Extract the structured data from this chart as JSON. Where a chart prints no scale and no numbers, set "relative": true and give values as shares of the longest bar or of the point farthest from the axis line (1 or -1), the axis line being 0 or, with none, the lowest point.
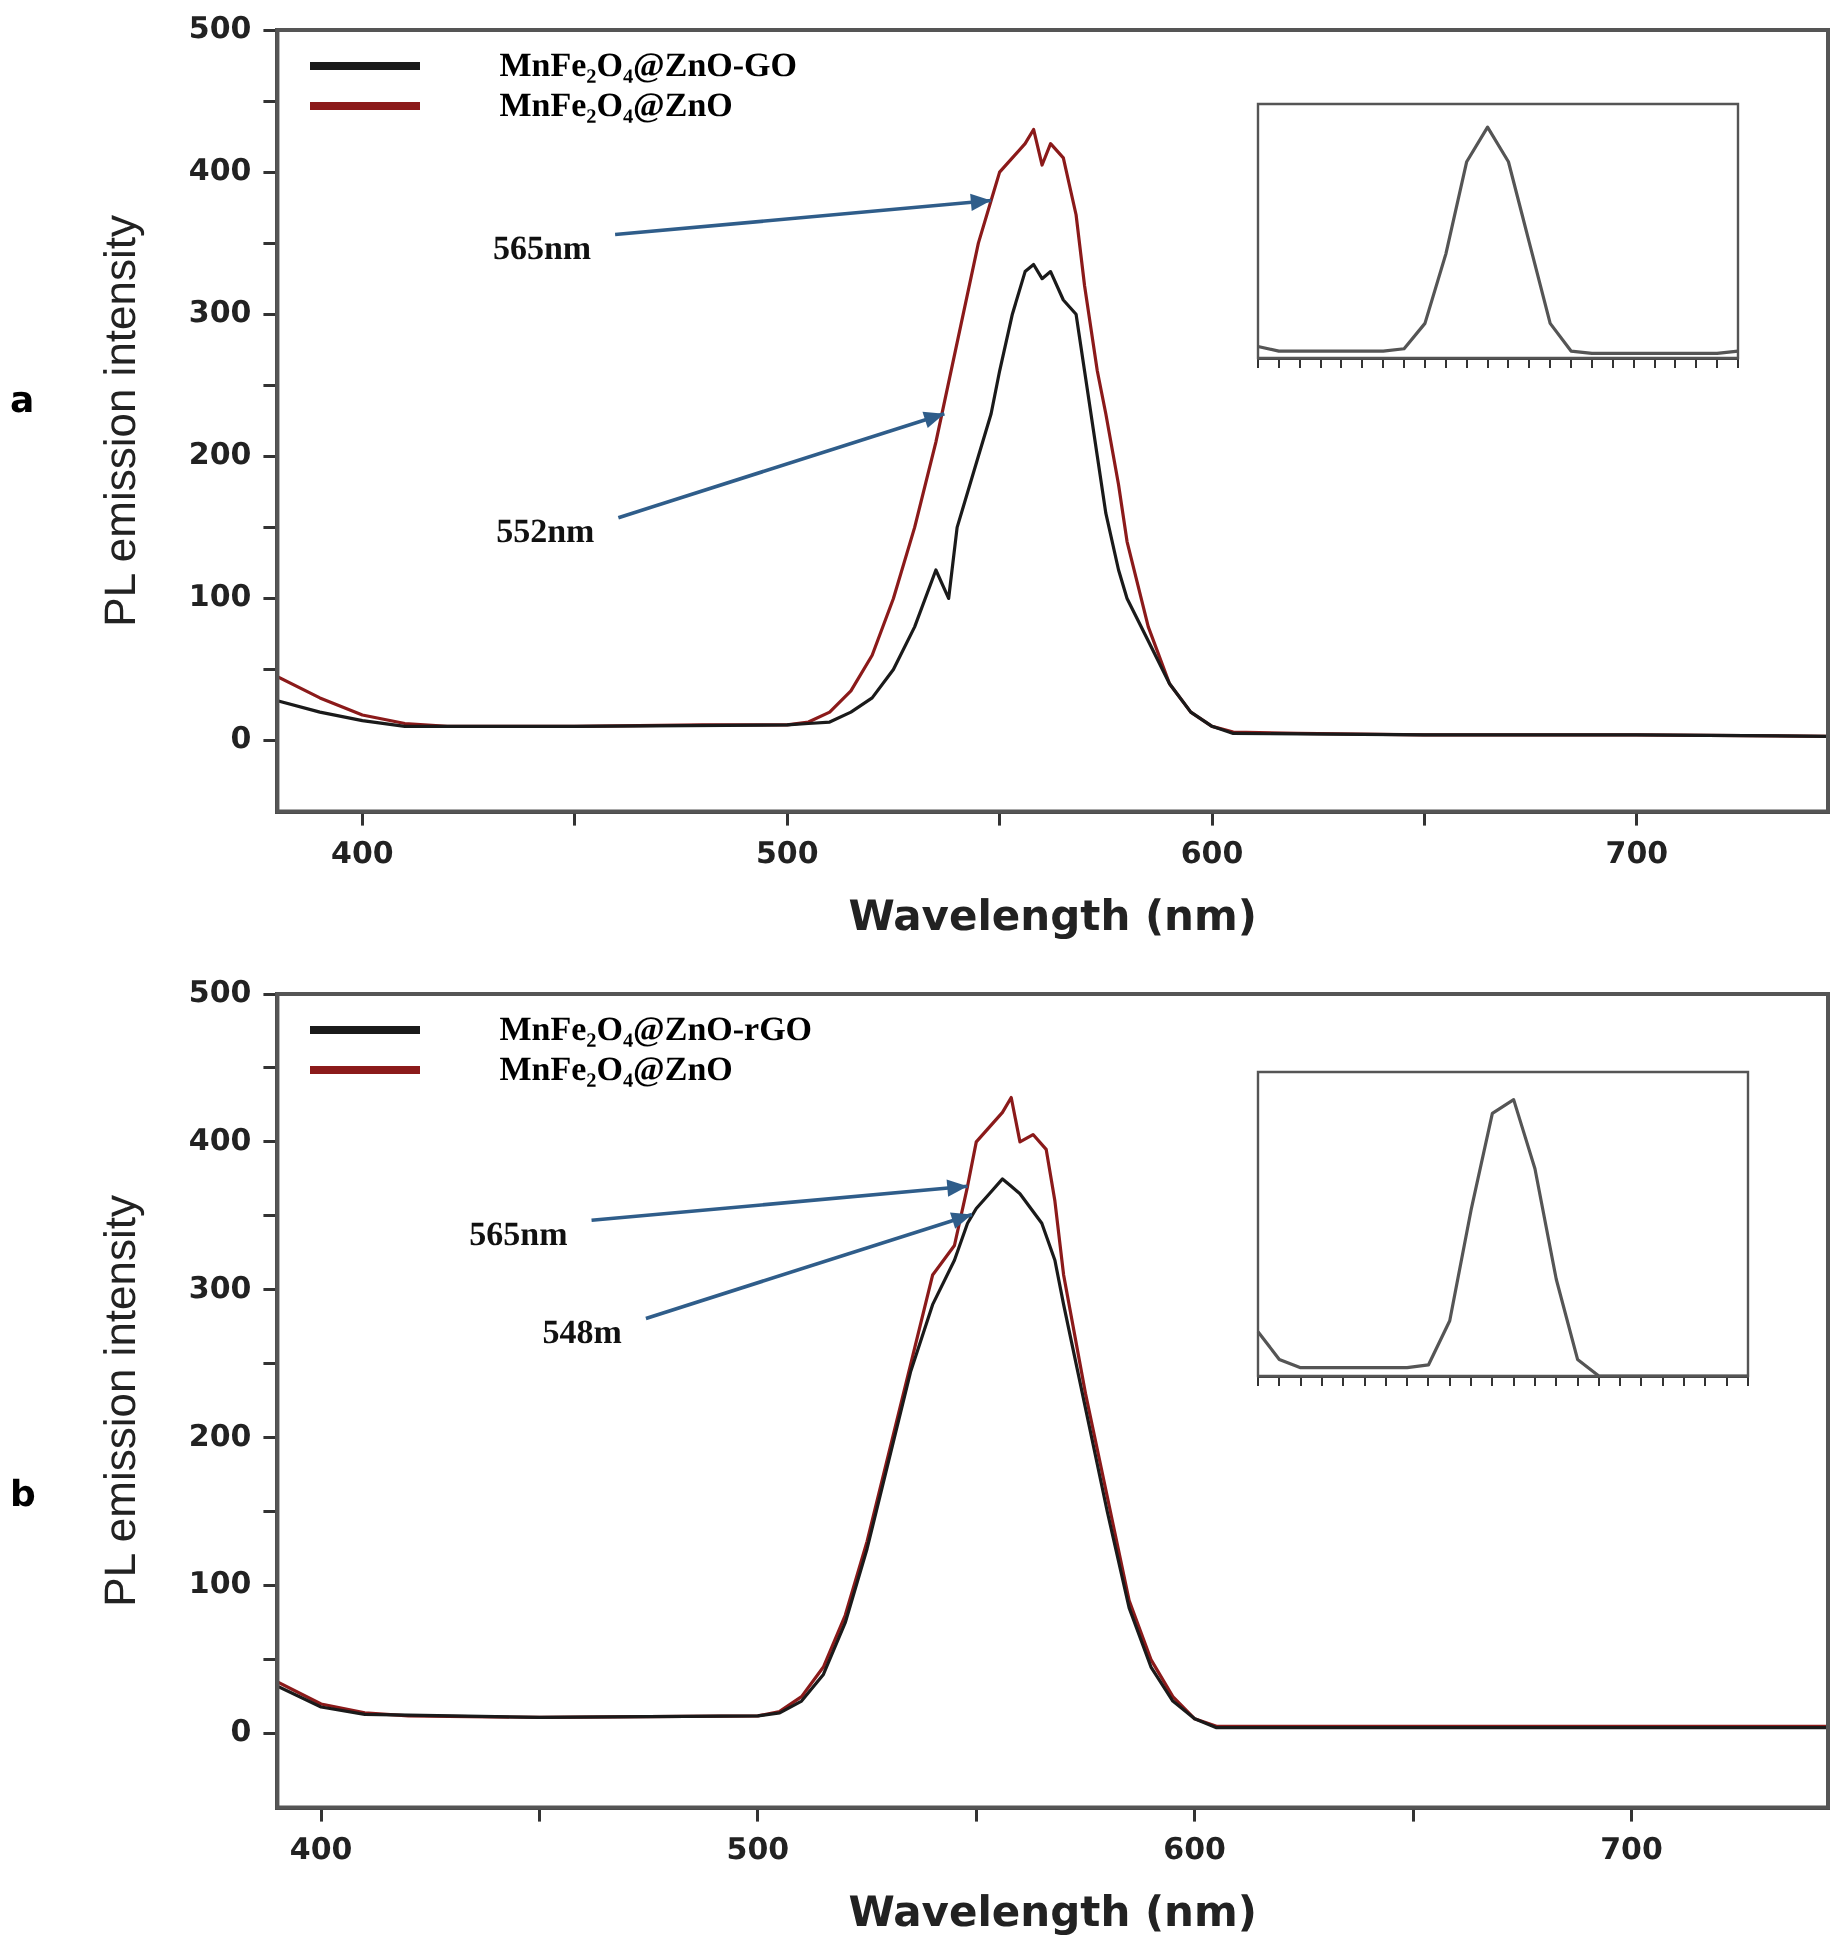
{
  "chart_data": [
    {
      "type": "line",
      "title": "a",
      "xlabel": "Wavelength (nm)",
      "ylabel": "PL emission intensity",
      "legend": "top left",
      "xlim": [
        380,
        745
      ],
      "xticks": [
        400,
        {
          "value": 450,
          "label": null
        },
        500,
        {
          "value": 550,
          "label": null
        },
        600,
        {
          "value": 650,
          "label": null
        },
        700
      ],
      "ylim": [
        -50,
        500
      ],
      "yticks": [
        0,
        {
          "value": 50,
          "label": null
        },
        100,
        {
          "value": 150,
          "label": null
        },
        200,
        {
          "value": 250,
          "label": null
        },
        300,
        {
          "value": 350,
          "label": null
        },
        400,
        {
          "value": 450,
          "label": null
        },
        500
      ],
      "series": [
        {
          "name": "MnFe₂O₄@ZnO-GO",
          "color": "#1a1a1a",
          "x": [
            380,
            390,
            400,
            410,
            450,
            500,
            505,
            510,
            515,
            520,
            525,
            530,
            535,
            538,
            540,
            545,
            548,
            550,
            553,
            556,
            558,
            560,
            562,
            565,
            568,
            570,
            573,
            575,
            578,
            580,
            585,
            590,
            595,
            600,
            605,
            650,
            700,
            745
          ],
          "values": [
            28,
            20,
            14,
            10,
            10,
            11,
            12,
            13,
            20,
            30,
            50,
            80,
            120,
            100,
            150,
            200,
            230,
            260,
            300,
            330,
            335,
            325,
            330,
            310,
            300,
            260,
            200,
            160,
            120,
            100,
            70,
            40,
            20,
            10,
            5,
            4,
            4,
            3
          ]
        },
        {
          "name": "MnFe₂O₄@ZnO",
          "color": "#8b1a1a",
          "x": [
            380,
            390,
            400,
            410,
            420,
            450,
            480,
            500,
            505,
            510,
            515,
            520,
            525,
            530,
            535,
            540,
            545,
            548,
            550,
            553,
            556,
            558,
            560,
            562,
            565,
            568,
            570,
            573,
            575,
            578,
            580,
            585,
            590,
            595,
            600,
            605,
            620,
            650,
            700,
            745
          ],
          "values": [
            45,
            30,
            18,
            12,
            10,
            10,
            11,
            11,
            13,
            20,
            35,
            60,
            100,
            150,
            210,
            280,
            350,
            380,
            400,
            410,
            420,
            430,
            405,
            420,
            410,
            370,
            320,
            260,
            230,
            180,
            140,
            80,
            40,
            20,
            10,
            6,
            5,
            4,
            4,
            3
          ]
        }
      ],
      "annotations": [
        {
          "text": "565nm",
          "x": 548,
          "y": 380
        },
        {
          "text": "552nm",
          "x": 537,
          "y": 230
        }
      ]
    },
    {
      "type": "line",
      "relative": true,
      "tick_labels": false,
      "categories": [
        null,
        null,
        null,
        null,
        null,
        null,
        null,
        null,
        null,
        null,
        null,
        null,
        null,
        null,
        null,
        null,
        null,
        null,
        null,
        null,
        null,
        null,
        null,
        null
      ],
      "series": [
        {
          "color": "#555555",
          "values": [
            0.05,
            0.03,
            0.03,
            0.03,
            0.03,
            0.03,
            0.03,
            0.04,
            0.15,
            0.45,
            0.85,
            1,
            0.85,
            0.5,
            0.15,
            0.03,
            0.02,
            0.02,
            0.02,
            0.02,
            0.02,
            0.02,
            0.02,
            0.03
          ]
        }
      ]
    },
    {
      "type": "line",
      "title": "b",
      "xlabel": "Wavelength (nm)",
      "ylabel": "PL emission intensity",
      "legend": "top left",
      "xlim": [
        390,
        745
      ],
      "xticks": [
        400,
        {
          "value": 450,
          "label": null
        },
        500,
        {
          "value": 550,
          "label": null
        },
        600,
        {
          "value": 650,
          "label": null
        },
        700
      ],
      "ylim": [
        -50,
        500
      ],
      "yticks": [
        0,
        {
          "value": 50,
          "label": null
        },
        100,
        {
          "value": 150,
          "label": null
        },
        200,
        {
          "value": 250,
          "label": null
        },
        300,
        {
          "value": 350,
          "label": null
        },
        400,
        {
          "value": 450,
          "label": null
        },
        500
      ],
      "series": [
        {
          "name": "MnFe₂O₄@ZnO-rGO",
          "color": "#1a1a1a",
          "x": [
            390,
            400,
            410,
            450,
            500,
            505,
            510,
            515,
            520,
            525,
            530,
            535,
            540,
            545,
            548,
            550,
            553,
            556,
            558,
            560,
            565,
            568,
            570,
            575,
            580,
            585,
            590,
            595,
            600,
            605,
            650,
            700,
            745
          ],
          "values": [
            32,
            18,
            13,
            11,
            12,
            14,
            22,
            40,
            75,
            125,
            185,
            245,
            290,
            320,
            345,
            355,
            365,
            375,
            370,
            365,
            345,
            320,
            290,
            220,
            150,
            85,
            45,
            22,
            10,
            4,
            4,
            4,
            4
          ]
        },
        {
          "name": "MnFe₂O₄@ZnO",
          "color": "#8b1a1a",
          "x": [
            390,
            400,
            410,
            420,
            450,
            500,
            505,
            510,
            515,
            520,
            525,
            530,
            535,
            540,
            545,
            548,
            550,
            553,
            556,
            558,
            560,
            563,
            566,
            568,
            570,
            575,
            580,
            585,
            590,
            595,
            600,
            605,
            650,
            700,
            745
          ],
          "values": [
            35,
            20,
            14,
            12,
            11,
            12,
            15,
            25,
            45,
            80,
            130,
            190,
            250,
            310,
            330,
            370,
            400,
            410,
            420,
            430,
            400,
            405,
            395,
            360,
            310,
            230,
            160,
            90,
            50,
            25,
            10,
            5,
            5,
            5,
            5
          ]
        }
      ],
      "annotations": [
        {
          "text": "565nm",
          "x": 548,
          "y": 370
        },
        {
          "text": "548m",
          "x": 549,
          "y": 351
        }
      ]
    },
    {
      "type": "line",
      "relative": true,
      "tick_labels": false,
      "categories": [
        null,
        null,
        null,
        null,
        null,
        null,
        null,
        null,
        null,
        null,
        null,
        null,
        null,
        null,
        null,
        null,
        null,
        null,
        null,
        null,
        null,
        null,
        null,
        null
      ],
      "series": [
        {
          "color": "#555555",
          "values": [
            0.16,
            0.06,
            0.03,
            0.03,
            0.03,
            0.03,
            0.03,
            0.03,
            0.04,
            0.2,
            0.6,
            0.95,
            1,
            0.75,
            0.35,
            0.06,
            0,
            0,
            0,
            0,
            0,
            0,
            0,
            0
          ]
        }
      ]
    }
  ]
}
